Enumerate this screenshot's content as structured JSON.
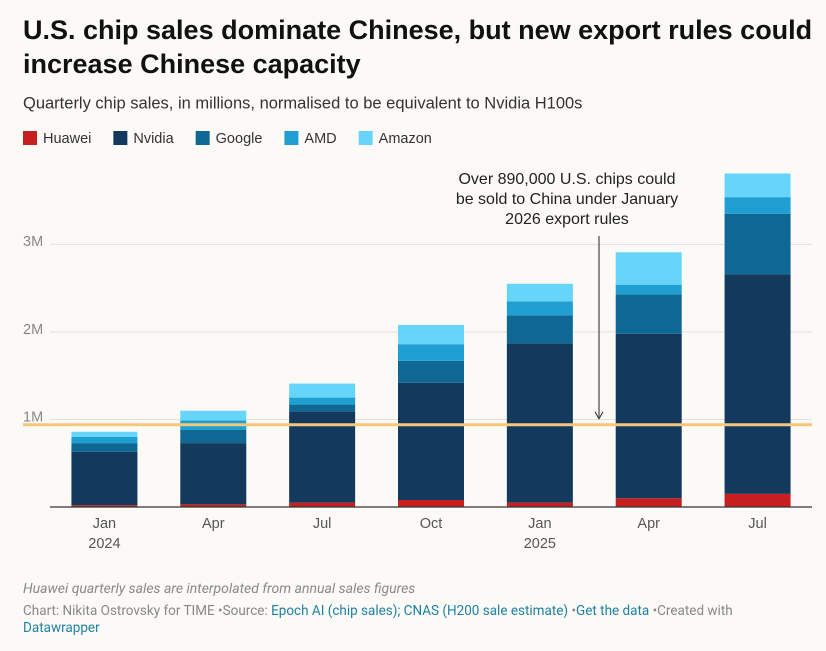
{
  "chart_data": {
    "type": "stacked-bar",
    "title": [
      "U.S. chip sales dominate Chinese, but new export rules could",
      "increase Chinese capacity"
    ],
    "subtitle": "Quarterly chip sales, in millions, normalised to be equivalent to Nvidia H100s",
    "categories": [
      "Jan 2024",
      "Apr",
      "Jul",
      "Oct",
      "Jan 2025",
      "Apr",
      "Jul"
    ],
    "series": [
      {
        "name": "Huawei",
        "color": "#c71f1f",
        "values": [
          0.02,
          0.03,
          0.05,
          0.08,
          0.05,
          0.1,
          0.15
        ]
      },
      {
        "name": "Nvidia",
        "color": "#133a5c",
        "values": [
          0.61,
          0.7,
          1.04,
          1.34,
          1.82,
          1.88,
          2.51
        ]
      },
      {
        "name": "Google",
        "color": "#0f6894",
        "values": [
          0.1,
          0.15,
          0.08,
          0.25,
          0.32,
          0.45,
          0.69
        ]
      },
      {
        "name": "AMD",
        "color": "#1f9fd1",
        "values": [
          0.07,
          0.11,
          0.08,
          0.19,
          0.16,
          0.11,
          0.19
        ]
      },
      {
        "name": "Amazon",
        "color": "#66d5f9",
        "values": [
          0.06,
          0.11,
          0.16,
          0.22,
          0.2,
          0.37,
          0.27
        ]
      }
    ],
    "ylim": [
      0,
      3.85
    ],
    "yticks": [
      {
        "value": 1,
        "label": "1M"
      },
      {
        "value": 2,
        "label": "2M"
      },
      {
        "value": 3,
        "label": "3M"
      }
    ],
    "grid": true,
    "reference_line": {
      "value": 0.94,
      "color": "#f6c77a"
    },
    "annotation": [
      "Over 890,000 U.S. chips could",
      "be sold to China under January",
      "2026 export rules"
    ]
  },
  "footer": {
    "note": "Huawei quarterly sales are interpolated from annual sales figures",
    "credit": "Chart: Nikita Ostrovsky for TIME",
    "source_label": "Source:",
    "source": "Epoch AI (chip sales); CNAS (H200 sale estimate)",
    "get_data": "Get the data",
    "created": "Created with",
    "tool": "Datawrapper"
  }
}
